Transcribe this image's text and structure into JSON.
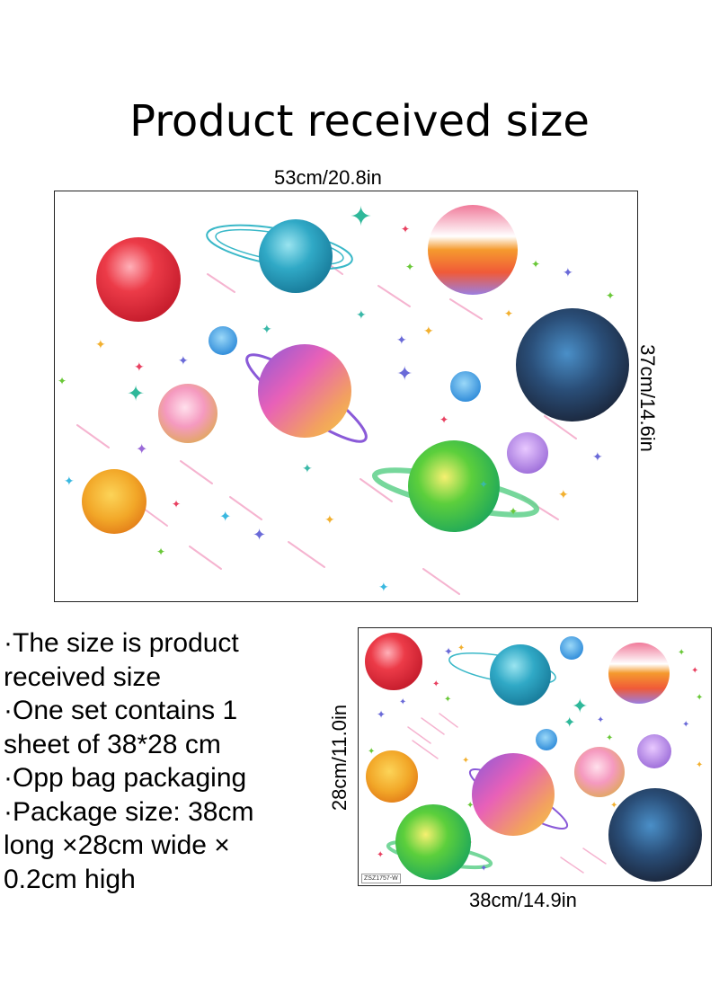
{
  "title": "Product received size",
  "large": {
    "width_label": "53cm/20.8in",
    "height_label": "37cm/14.6in"
  },
  "small": {
    "width_label": "38cm/14.9in",
    "height_label": "28cm/11.0in",
    "code": "ZSZ1757-W"
  },
  "description": [
    "·The size is product",
    "received size",
    "·One set contains 1",
    "sheet of 38*28 cm",
    "·Opp bag packaging",
    "·Package size: 38cm",
    "long ×28cm wide ×",
    "0.2cm high"
  ],
  "colors": {
    "red": "#e8323f",
    "cyan": "#2fa8c8",
    "orange": "#f39a3a",
    "navy": "#1e3552",
    "pink": "#f08fb8",
    "purple": "#b06bd8",
    "green": "#58c93a",
    "yellow": "#f2b223",
    "lavender": "#a67fe0"
  }
}
